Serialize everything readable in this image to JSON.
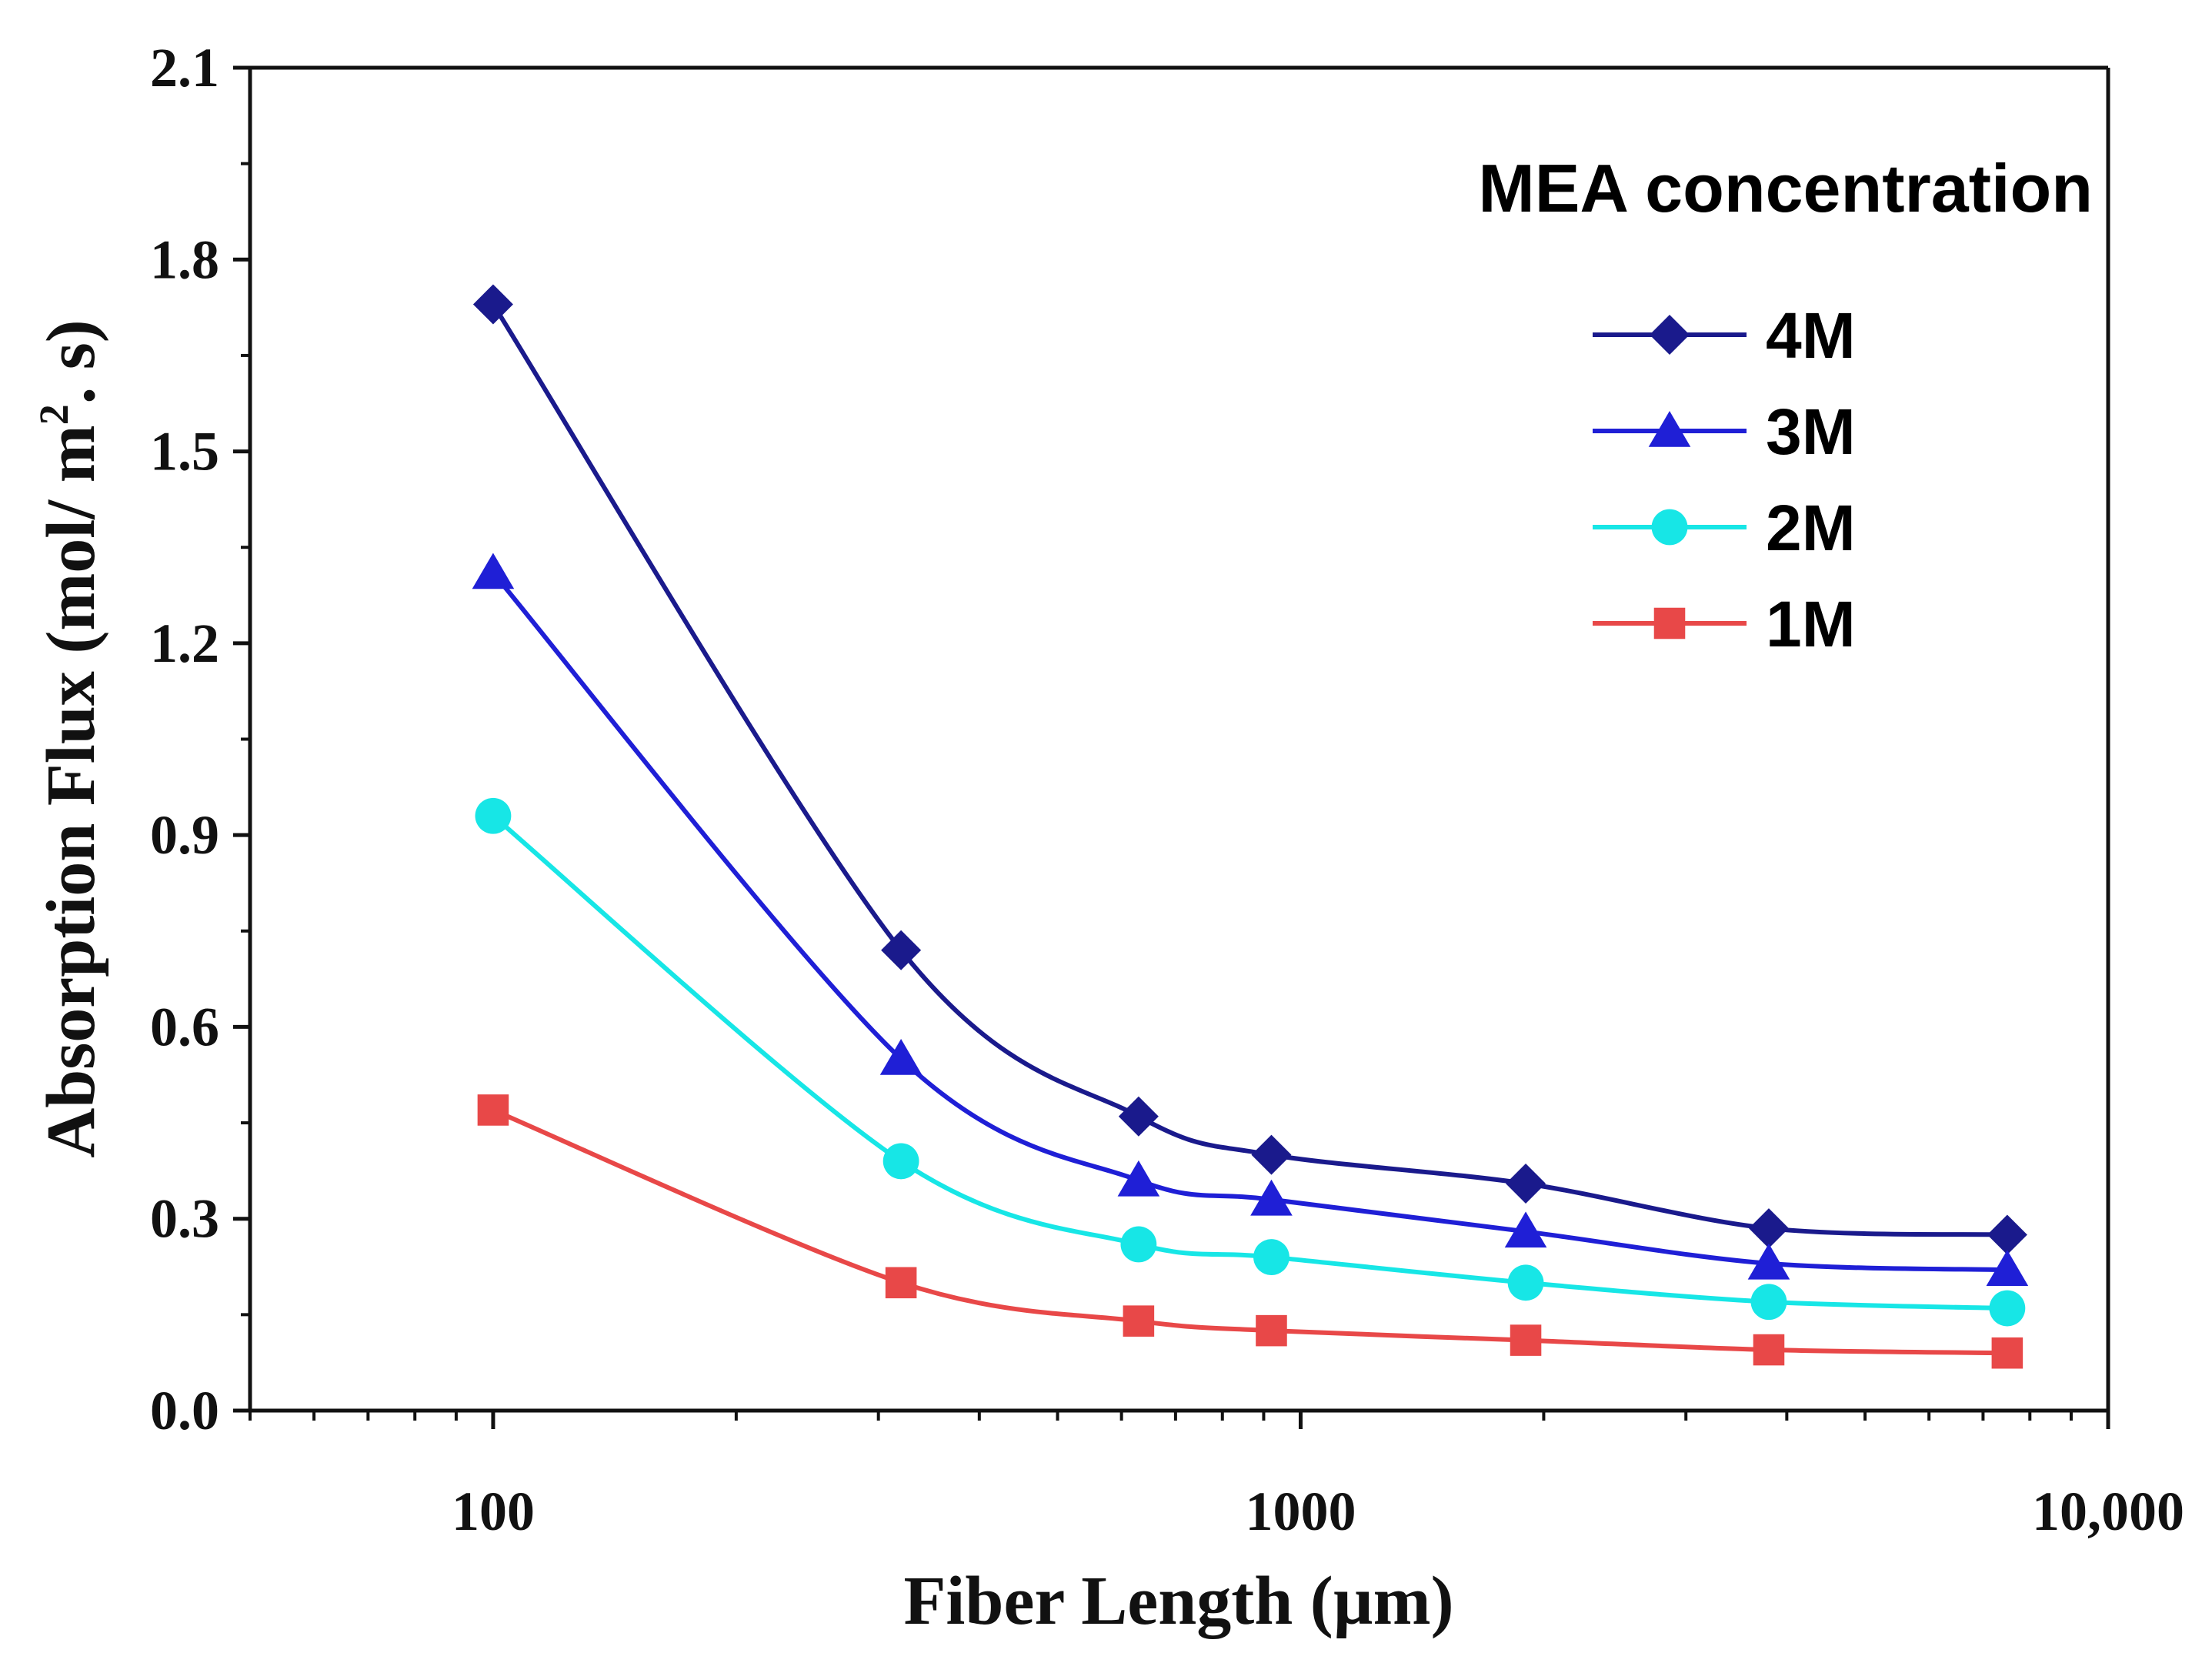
{
  "chart_data": {
    "type": "line",
    "title": "",
    "xlabel": "Fiber Length (µm)",
    "ylabel_main": "Absorption Flux (mol/ m",
    "ylabel_sup": "2",
    "ylabel_tail": ". s)",
    "x_scale": "log",
    "xlim": [
      50,
      10000
    ],
    "ylim": [
      0.0,
      2.1
    ],
    "x_ticks": [
      {
        "value": 100,
        "label": "100"
      },
      {
        "value": 1000,
        "label": "1000"
      },
      {
        "value": 10000,
        "label": "10,000"
      }
    ],
    "y_ticks": [
      {
        "value": 0.0,
        "label": "0.0"
      },
      {
        "value": 0.3,
        "label": "0.3"
      },
      {
        "value": 0.6,
        "label": "0.6"
      },
      {
        "value": 0.9,
        "label": "0.9"
      },
      {
        "value": 1.2,
        "label": "1.2"
      },
      {
        "value": 1.5,
        "label": "1.5"
      },
      {
        "value": 1.8,
        "label": "1.8"
      },
      {
        "value": 2.1,
        "label": "2.1"
      }
    ],
    "grid": false,
    "legend_title": "MEA concentration",
    "legend_position": "top-right",
    "x": [
      100,
      320,
      630,
      920,
      1900,
      3800,
      7500
    ],
    "series": [
      {
        "name": "4M",
        "marker": "diamond",
        "color": "#1a1a8c",
        "values": [
          1.73,
          0.72,
          0.46,
          0.4,
          0.355,
          0.285,
          0.275
        ]
      },
      {
        "name": "3M",
        "marker": "triangle",
        "color": "#1f1fd6",
        "values": [
          1.31,
          0.55,
          0.36,
          0.33,
          0.28,
          0.23,
          0.22
        ]
      },
      {
        "name": "2M",
        "marker": "circle",
        "color": "#17e6e6",
        "values": [
          0.93,
          0.39,
          0.26,
          0.24,
          0.2,
          0.17,
          0.16
        ]
      },
      {
        "name": "1M",
        "marker": "square",
        "color": "#e84848",
        "values": [
          0.47,
          0.2,
          0.14,
          0.125,
          0.11,
          0.095,
          0.09
        ]
      }
    ]
  }
}
